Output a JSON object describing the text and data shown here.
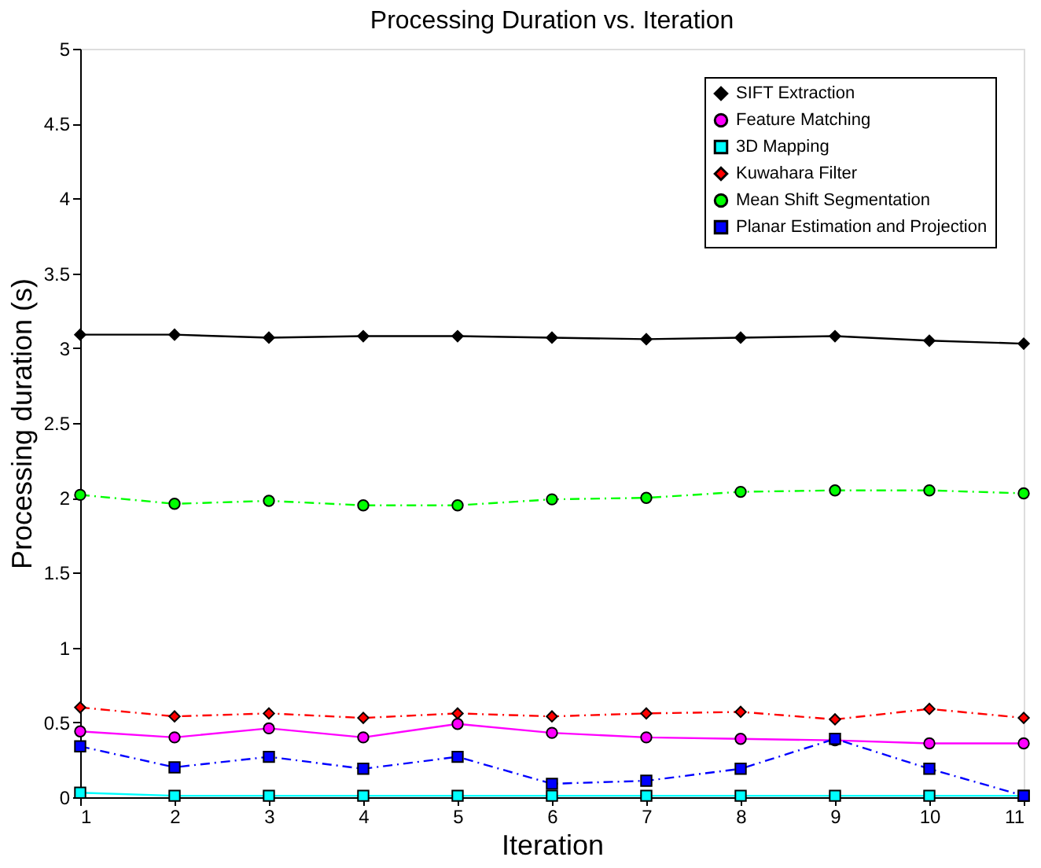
{
  "chart_data": {
    "type": "line",
    "title": "Processing Duration vs. Iteration",
    "xlabel": "Iteration",
    "ylabel": "Processing duration (s)",
    "x": [
      1,
      2,
      3,
      4,
      5,
      6,
      7,
      8,
      9,
      10,
      11
    ],
    "xlim": [
      1,
      11
    ],
    "xticks": [
      1,
      2,
      3,
      4,
      5,
      6,
      7,
      8,
      9,
      10,
      11
    ],
    "ylim": [
      0,
      5
    ],
    "yticks": [
      0,
      0.5,
      1,
      1.5,
      2,
      2.5,
      3,
      3.5,
      4,
      4.5,
      5
    ],
    "grid": false,
    "legend": "top right",
    "series": [
      {
        "name": "SIFT Extraction",
        "color": "#000000",
        "marker": "diamond",
        "line_style": "solid",
        "values": [
          3.09,
          3.09,
          3.07,
          3.08,
          3.08,
          3.07,
          3.06,
          3.07,
          3.08,
          3.05,
          3.03
        ]
      },
      {
        "name": "Feature Matching",
        "color": "#ff00ff",
        "marker": "circle",
        "line_style": "solid",
        "values": [
          0.44,
          0.4,
          0.46,
          0.4,
          0.49,
          0.43,
          0.4,
          0.39,
          0.38,
          0.36,
          0.36
        ]
      },
      {
        "name": "3D Mapping",
        "color": "#00ffff",
        "marker": "square",
        "line_style": "solid",
        "values": [
          0.03,
          0.01,
          0.01,
          0.01,
          0.01,
          0.01,
          0.01,
          0.01,
          0.01,
          0.01,
          0.01
        ]
      },
      {
        "name": "Kuwahara Filter",
        "color": "#ff0000",
        "marker": "diamond",
        "line_style": "dashed",
        "values": [
          0.6,
          0.54,
          0.56,
          0.53,
          0.56,
          0.54,
          0.56,
          0.57,
          0.52,
          0.59,
          0.53
        ]
      },
      {
        "name": "Mean Shift Segmentation",
        "color": "#00ff00",
        "marker": "circle",
        "line_style": "dashed",
        "values": [
          2.02,
          1.96,
          1.98,
          1.95,
          1.95,
          1.99,
          2.0,
          2.04,
          2.05,
          2.05,
          2.03
        ]
      },
      {
        "name": "Planar Estimation and Projection",
        "color": "#0000ff",
        "marker": "square",
        "line_style": "dashed",
        "values": [
          0.34,
          0.2,
          0.27,
          0.19,
          0.27,
          0.09,
          0.11,
          0.19,
          0.39,
          0.19,
          0.01
        ]
      }
    ]
  }
}
